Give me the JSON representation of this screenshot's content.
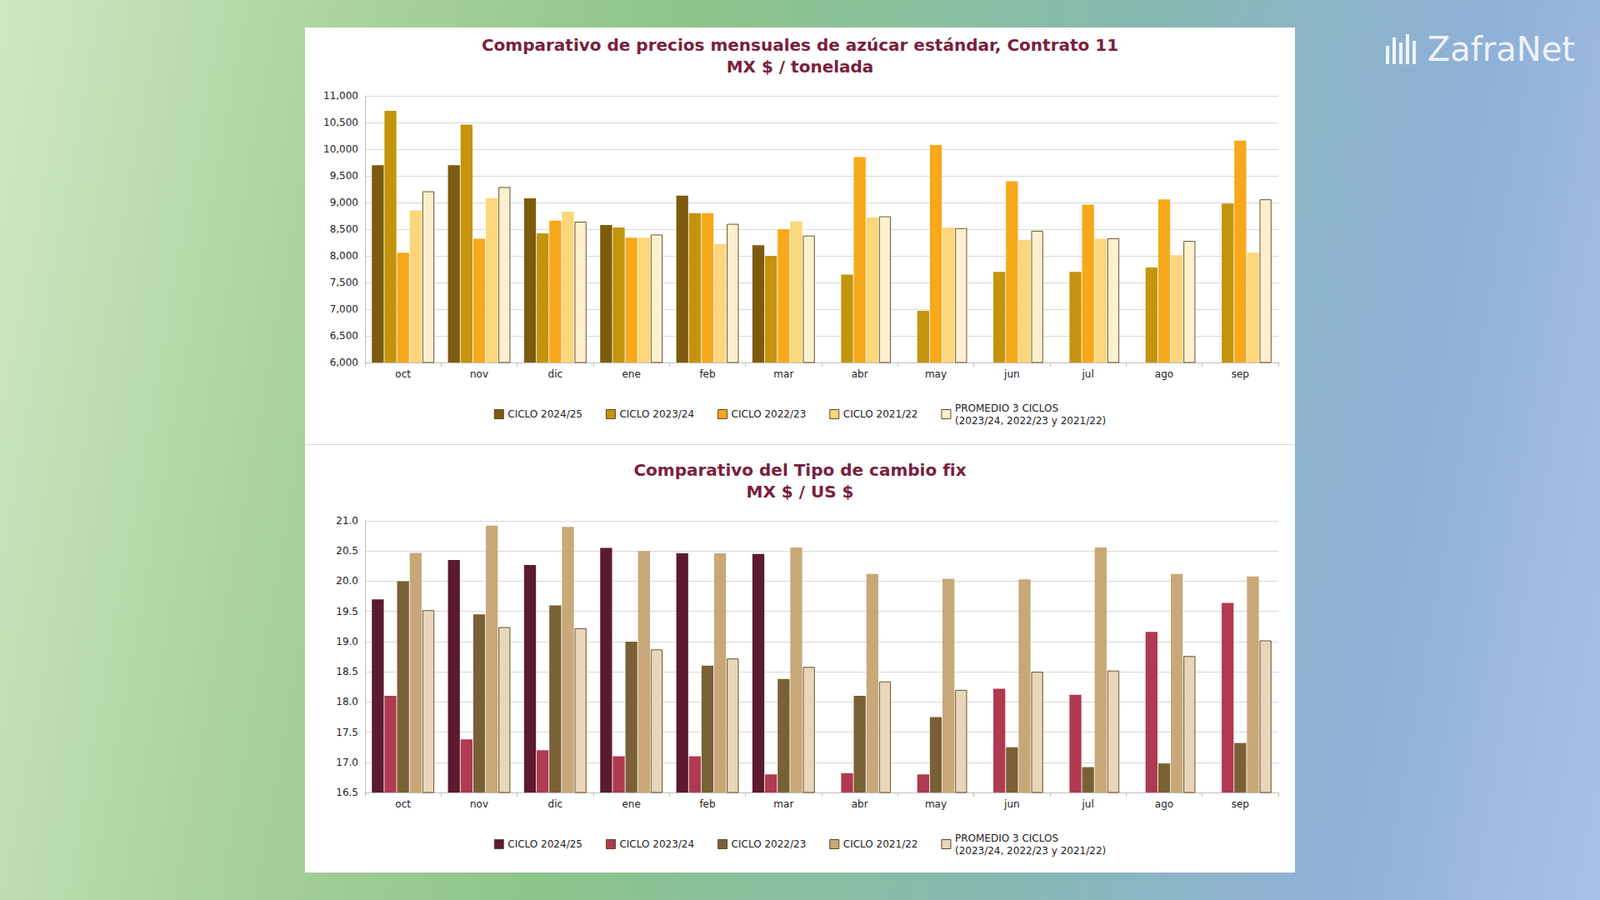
{
  "logo": "ZafraNet",
  "chart_data": [
    {
      "type": "bar",
      "title": "Comparativo de precios mensuales de azúcar estándar, Contrato 11",
      "subtitle": "MX $ / tonelada",
      "categories": [
        "oct",
        "nov",
        "dic",
        "ene",
        "feb",
        "mar",
        "abr",
        "may",
        "jun",
        "jul",
        "ago",
        "sep"
      ],
      "series": [
        {
          "name": "CICLO 2024/25",
          "color": "#7d5b0e",
          "values": [
            9700,
            9700,
            9080,
            8580,
            9130,
            8200,
            null,
            null,
            null,
            null,
            null,
            null
          ]
        },
        {
          "name": "CICLO 2023/24",
          "color": "#c4940d",
          "values": [
            10720,
            10460,
            8420,
            8530,
            8800,
            8000,
            7650,
            6970,
            7700,
            7700,
            7780,
            8980
          ]
        },
        {
          "name": "CICLO 2022/23",
          "color": "#f7a81b",
          "values": [
            8060,
            8320,
            8660,
            8340,
            8800,
            8500,
            9850,
            10080,
            9400,
            8960,
            9060,
            10160
          ]
        },
        {
          "name": "CICLO 2021/22",
          "color": "#fcd67a",
          "values": [
            8850,
            9080,
            8830,
            8340,
            8220,
            8650,
            8720,
            8530,
            8300,
            8320,
            8010,
            8060
          ]
        },
        {
          "name": "PROMEDIO 3 CICLOS\n(2023/24, 2022/23 y 2021/22)",
          "color": "#fdf0cf",
          "values": [
            9210,
            9290,
            8640,
            8400,
            8600,
            8380,
            8740,
            8520,
            8470,
            8330,
            8280,
            9060
          ]
        }
      ],
      "ylim": [
        6000,
        11000
      ],
      "yticks": [
        {
          "value": 6000,
          "label": "6,000"
        },
        {
          "value": 6500,
          "label": "6,500"
        },
        {
          "value": 7000,
          "label": "7,000"
        },
        {
          "value": 7500,
          "label": "7,500"
        },
        {
          "value": 8000,
          "label": "8,000"
        },
        {
          "value": 8500,
          "label": "8,500"
        },
        {
          "value": 9000,
          "label": "9,000"
        },
        {
          "value": 9500,
          "label": "9,500"
        },
        {
          "value": 10000,
          "label": "10,000"
        },
        {
          "value": 10500,
          "label": "10,500"
        },
        {
          "value": 11000,
          "label": "11,000"
        }
      ],
      "grid": true,
      "legend": "bottom"
    },
    {
      "type": "bar",
      "title": "Comparativo del Tipo de cambio fix",
      "subtitle": "MX $ / US $",
      "categories": [
        "oct",
        "nov",
        "dic",
        "ene",
        "feb",
        "mar",
        "abr",
        "may",
        "jun",
        "jul",
        "ago",
        "sep"
      ],
      "series": [
        {
          "name": "CICLO 2024/25",
          "color": "#5c1a2e",
          "values": [
            19.7,
            20.35,
            20.27,
            20.55,
            20.46,
            20.45,
            null,
            null,
            null,
            null,
            null,
            null
          ]
        },
        {
          "name": "CICLO 2023/24",
          "color": "#b03a50",
          "values": [
            18.1,
            17.38,
            17.2,
            17.1,
            17.1,
            16.8,
            16.82,
            16.8,
            18.22,
            18.12,
            19.16,
            19.64
          ]
        },
        {
          "name": "CICLO 2022/23",
          "color": "#7a6035",
          "values": [
            20.0,
            19.45,
            19.6,
            19.0,
            18.6,
            18.38,
            18.1,
            17.75,
            17.25,
            16.92,
            16.98,
            17.32
          ]
        },
        {
          "name": "CICLO 2021/22",
          "color": "#c8a878",
          "values": [
            20.47,
            20.92,
            20.9,
            20.5,
            20.46,
            20.56,
            20.12,
            20.04,
            20.03,
            20.56,
            20.12,
            20.08
          ]
        },
        {
          "name": "PROMEDIO 3 CICLOS\n(2023/24, 2022/23 y 2021/22)",
          "color": "#e8d6ba",
          "values": [
            19.52,
            19.24,
            19.22,
            18.87,
            18.72,
            18.58,
            18.34,
            18.2,
            18.5,
            18.52,
            18.76,
            19.02
          ]
        }
      ],
      "ylim": [
        16.5,
        21.0
      ],
      "yticks": [
        16.5,
        {
          "value": 17,
          "label": "17.0"
        },
        17.5,
        {
          "value": 18,
          "label": "18.0"
        },
        18.5,
        {
          "value": 19,
          "label": "19.0"
        },
        19.5,
        {
          "value": 20,
          "label": "20.0"
        },
        20.5,
        {
          "value": 21,
          "label": "21.0"
        }
      ],
      "grid": true,
      "legend": "bottom"
    }
  ]
}
